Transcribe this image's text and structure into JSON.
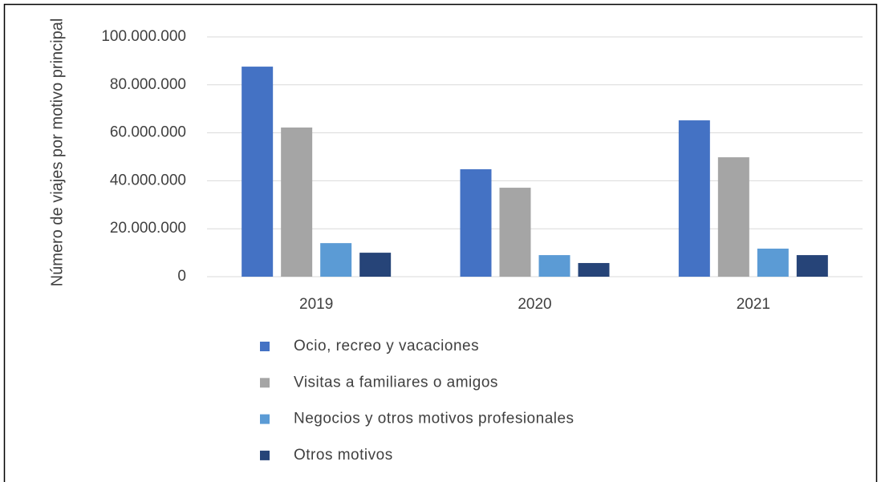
{
  "chart_data": {
    "type": "bar",
    "y_label": "Número de viajes por motivo principal",
    "categories": [
      "2019",
      "2020",
      "2021"
    ],
    "series": [
      {
        "name": "Ocio, recreo y vacaciones",
        "color": "#4472c4",
        "values": [
          87600000,
          44800000,
          65200000
        ]
      },
      {
        "name": "Visitas a familiares o amigos",
        "color": "#a5a5a5",
        "values": [
          62200000,
          37100000,
          49800000
        ]
      },
      {
        "name": "Negocios y otros motivos profesionales",
        "color": "#5b9bd5",
        "values": [
          14000000,
          9000000,
          11700000
        ]
      },
      {
        "name": "Otros motivos",
        "color": "#264478",
        "values": [
          10000000,
          5700000,
          9000000
        ]
      }
    ],
    "ylim": [
      0,
      100000000
    ],
    "yticks": [
      0,
      {
        "value": 20000000,
        "label": "20.000.000"
      },
      {
        "value": 40000000,
        "label": "40.000.000"
      },
      {
        "value": 60000000,
        "label": "60.000.000"
      },
      {
        "value": 80000000,
        "label": "80.000.000"
      },
      {
        "value": 100000000,
        "label": "100.000.000"
      }
    ],
    "grid": true,
    "legend": "bottom"
  }
}
